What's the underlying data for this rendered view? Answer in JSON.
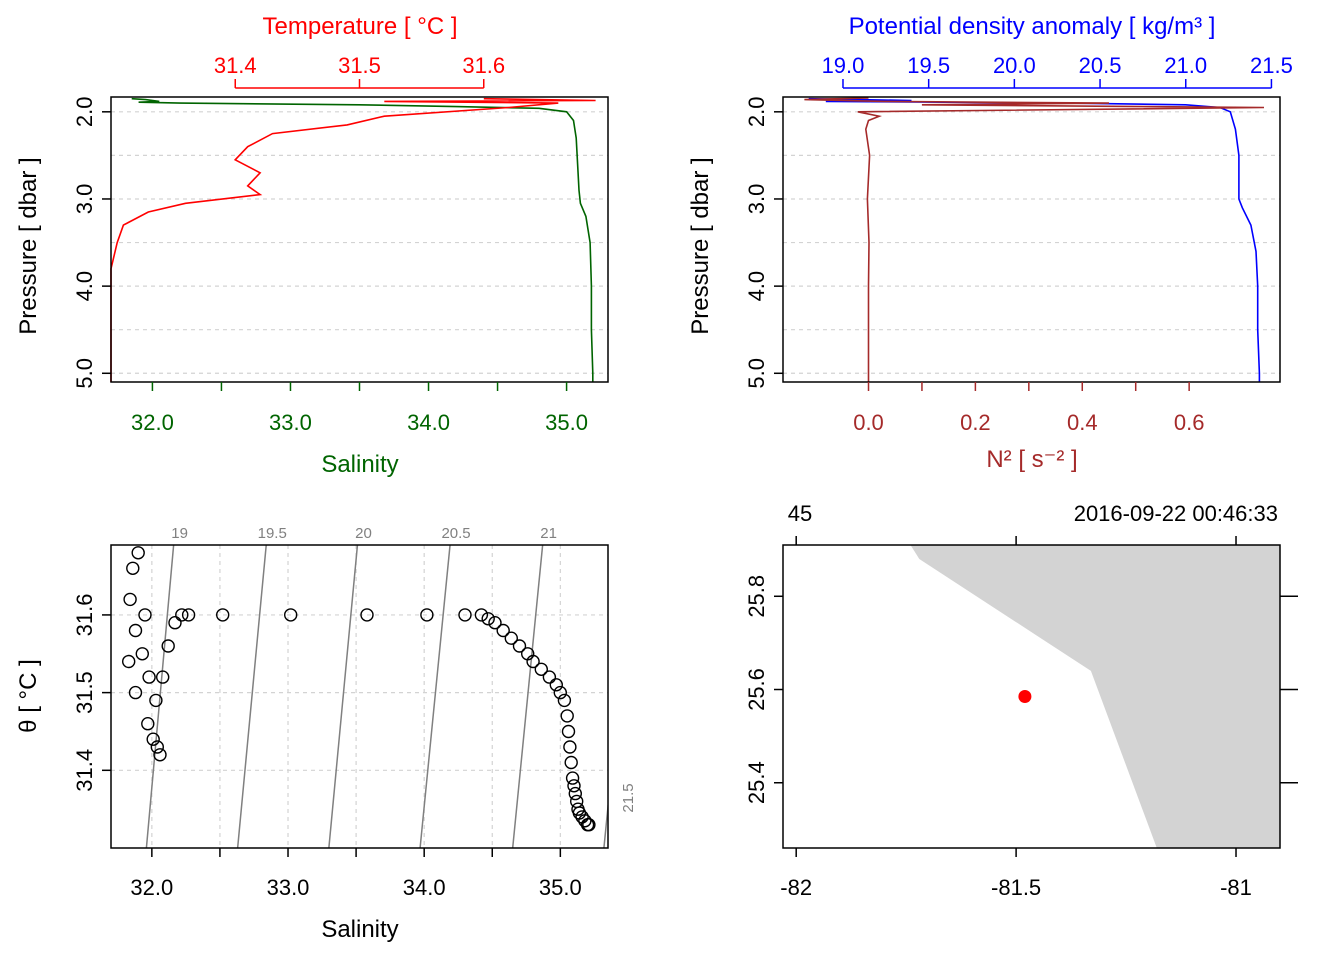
{
  "colors": {
    "temperature": "#ff0000",
    "salinity": "#006400",
    "density": "#0000ff",
    "n2": "#a52a2a",
    "isopycnal": "#808080",
    "grid": "#d3d3d3",
    "land": "#d3d3d3",
    "station": "#ff0000",
    "axis": "#000000"
  },
  "chart_data": [
    {
      "id": "temperature-salinity-profile",
      "type": "line",
      "title": "Temperature [ °C ]",
      "xlabel": "Salinity",
      "ylabel": "Pressure [ dbar ]",
      "ylim": [
        5.1,
        1.83
      ],
      "yticks": [
        "2.0",
        "3.0",
        "4.0",
        "5.0"
      ],
      "x_bottom": {
        "label": "Salinity",
        "lim": [
          31.7,
          35.3
        ],
        "ticks": [
          32.0,
          32.5,
          33.0,
          33.5,
          34.0,
          34.5,
          35.0
        ],
        "labels": [
          "32.0",
          "33.0",
          "34.0",
          "35.0"
        ]
      },
      "x_top": {
        "label": "Temperature [ °C ]",
        "lim": [
          31.3,
          31.7
        ],
        "ticks": [
          31.4,
          31.5,
          31.6
        ],
        "labels": [
          "31.4",
          "31.5",
          "31.6"
        ]
      },
      "series": [
        {
          "name": "Salinity",
          "axis": "bottom",
          "pressure": [
            1.85,
            1.86,
            1.88,
            1.89,
            1.9,
            1.92,
            1.94,
            1.96,
            2.0,
            2.1,
            2.3,
            2.6,
            2.9,
            3.05,
            3.2,
            3.5,
            4.0,
            4.5,
            5.0,
            5.1
          ],
          "values": [
            31.85,
            31.95,
            32.05,
            31.9,
            32.2,
            33.5,
            34.2,
            34.8,
            35.0,
            35.05,
            35.07,
            35.08,
            35.09,
            35.1,
            35.14,
            35.17,
            35.18,
            35.18,
            35.19,
            35.19
          ]
        },
        {
          "name": "Temperature",
          "axis": "top",
          "pressure": [
            1.85,
            1.87,
            1.88,
            1.9,
            1.95,
            2.05,
            2.15,
            2.25,
            2.4,
            2.55,
            2.7,
            2.85,
            2.95,
            3.05,
            3.15,
            3.3,
            3.5,
            3.8,
            4.2,
            4.7,
            5.1
          ],
          "values": [
            31.6,
            31.69,
            31.52,
            31.66,
            31.62,
            31.52,
            31.49,
            31.43,
            31.41,
            31.4,
            31.42,
            31.41,
            31.42,
            31.36,
            31.33,
            31.31,
            31.305,
            31.3,
            31.3,
            31.3,
            31.3
          ]
        }
      ]
    },
    {
      "id": "density-n2-profile",
      "type": "line",
      "title": "Potential density anomaly [ kg/m³ ]",
      "xlabel": "N² [ s⁻² ]",
      "ylabel": "Pressure [ dbar ]",
      "ylim": [
        5.1,
        1.83
      ],
      "yticks": [
        "2.0",
        "3.0",
        "4.0",
        "5.0"
      ],
      "x_top": {
        "label": "Potential density anomaly [ kg/m³ ]",
        "lim": [
          18.65,
          21.55
        ],
        "ticks": [
          19.0,
          19.5,
          20.0,
          20.5,
          21.0,
          21.5
        ],
        "labels": [
          "19.0",
          "19.5",
          "20.0",
          "20.5",
          "21.0",
          "21.5"
        ]
      },
      "x_bottom": {
        "label": "N² [ s⁻² ]",
        "lim": [
          -0.16,
          0.77
        ],
        "ticks": [
          0.0,
          0.1,
          0.2,
          0.3,
          0.4,
          0.5,
          0.6
        ],
        "labels": [
          "0.0",
          "0.2",
          "0.4",
          "0.6"
        ]
      },
      "series": [
        {
          "name": "Potential density anomaly",
          "axis": "top",
          "pressure": [
            1.85,
            1.87,
            1.88,
            1.9,
            1.92,
            1.95,
            2.0,
            2.2,
            2.5,
            2.8,
            3.0,
            3.1,
            3.3,
            3.6,
            4.0,
            4.5,
            5.0,
            5.1
          ],
          "values": [
            18.8,
            19.4,
            18.9,
            20.3,
            21.0,
            21.2,
            21.26,
            21.29,
            21.31,
            21.31,
            21.31,
            21.33,
            21.38,
            21.41,
            21.42,
            21.42,
            21.43,
            21.43
          ]
        },
        {
          "name": "N²",
          "axis": "bottom",
          "pressure": [
            1.84,
            1.86,
            1.88,
            1.9,
            1.92,
            1.95,
            2.0,
            2.05,
            2.1,
            2.2,
            2.5,
            3.0,
            3.5,
            4.0,
            4.5,
            5.0,
            5.1
          ],
          "values": [
            0.0,
            -0.12,
            0.03,
            0.45,
            0.1,
            0.74,
            -0.02,
            0.02,
            0.0,
            -0.005,
            0.002,
            -0.002,
            0.001,
            0.0,
            0.0,
            0.0,
            0.0
          ]
        }
      ]
    },
    {
      "id": "ts-diagram",
      "type": "scatter",
      "xlabel": "Salinity",
      "ylabel": "θ [ °C ]",
      "xlim": [
        31.7,
        35.35
      ],
      "ylim": [
        31.3,
        31.69
      ],
      "xticks": [
        "32.0",
        "33.0",
        "34.0",
        "35.0"
      ],
      "yticks": [
        "31.4",
        "31.5",
        "31.6"
      ],
      "isopycnals": [
        {
          "label": "19",
          "bottom_s": 31.96,
          "top_s": 32.16
        },
        {
          "label": "19.5",
          "bottom_s": 32.63,
          "top_s": 32.84
        },
        {
          "label": "20",
          "bottom_s": 33.3,
          "top_s": 33.51
        },
        {
          "label": "20.5",
          "bottom_s": 33.97,
          "top_s": 34.19
        },
        {
          "label": "21",
          "bottom_s": 34.65,
          "top_s": 34.87
        },
        {
          "label": "21.5",
          "bottom_s": 35.32,
          "top_s": 35.54
        }
      ],
      "points": {
        "salinity": [
          32.52,
          33.02,
          33.58,
          34.02,
          34.3,
          34.42,
          34.47,
          34.52,
          34.58,
          34.64,
          34.7,
          34.76,
          34.8,
          34.86,
          34.92,
          34.97,
          35.0,
          35.03,
          35.05,
          35.06,
          35.07,
          35.08,
          35.09,
          35.1,
          35.11,
          35.12,
          35.13,
          35.14,
          35.16,
          35.18,
          35.2,
          35.21,
          31.9,
          31.86,
          31.84,
          31.88,
          31.93,
          31.98,
          32.03,
          32.08,
          32.12,
          32.17,
          32.22,
          32.27,
          31.97,
          32.01,
          32.04,
          32.06,
          31.88,
          31.83,
          31.95
        ],
        "theta": [
          31.6,
          31.6,
          31.6,
          31.6,
          31.6,
          31.6,
          31.595,
          31.59,
          31.58,
          31.57,
          31.56,
          31.55,
          31.54,
          31.53,
          31.52,
          31.51,
          31.5,
          31.49,
          31.47,
          31.45,
          31.43,
          31.41,
          31.39,
          31.38,
          31.37,
          31.36,
          31.35,
          31.345,
          31.34,
          31.335,
          31.33,
          31.33,
          31.68,
          31.66,
          31.62,
          31.58,
          31.55,
          31.52,
          31.49,
          31.52,
          31.56,
          31.59,
          31.6,
          31.6,
          31.46,
          31.44,
          31.43,
          31.42,
          31.5,
          31.54,
          31.6
        ]
      }
    },
    {
      "id": "station-map",
      "type": "map",
      "xlim": [
        -82.03,
        -80.9
      ],
      "ylim": [
        25.26,
        25.91
      ],
      "xticks": [
        "-82",
        "-81.5",
        "-81"
      ],
      "yticks": [
        "25.4",
        "25.6",
        "25.8"
      ],
      "top_left_label": "45",
      "top_right_label": "2016-09-22 00:46:33",
      "station": {
        "lon": -81.48,
        "lat": 25.585
      },
      "coast": {
        "lon": [
          -81.74,
          -81.72,
          -81.33,
          -81.18,
          -80.9,
          -80.9
        ],
        "lat": [
          25.91,
          25.88,
          25.64,
          25.26,
          25.26,
          25.91
        ]
      }
    }
  ]
}
